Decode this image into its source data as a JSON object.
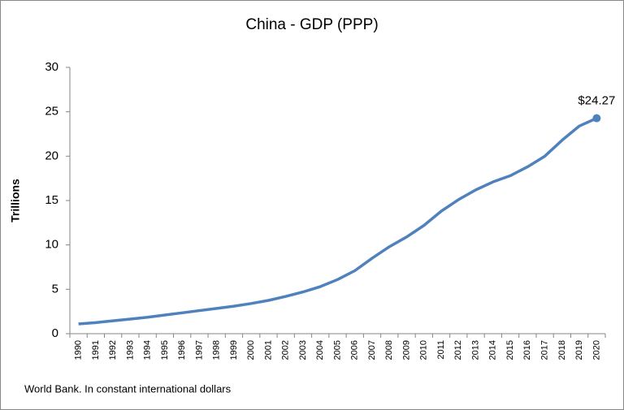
{
  "chart_data": {
    "type": "line",
    "title": "China - GDP (PPP)",
    "y_label": "Trillions",
    "source": "World Bank.  In constant international dollars",
    "categories": [
      "1990",
      "1991",
      "1992",
      "1993",
      "1994",
      "1995",
      "1996",
      "1997",
      "1998",
      "1999",
      "2000",
      "2001",
      "2002",
      "2003",
      "2004",
      "2005",
      "2006",
      "2007",
      "2008",
      "2009",
      "2010",
      "2011",
      "2012",
      "2013",
      "2014",
      "2015",
      "2016",
      "2017",
      "2018",
      "2019",
      "2020"
    ],
    "values": [
      1.1,
      1.25,
      1.45,
      1.65,
      1.85,
      2.1,
      2.35,
      2.6,
      2.85,
      3.1,
      3.4,
      3.75,
      4.2,
      4.7,
      5.3,
      6.1,
      7.1,
      8.5,
      9.8,
      10.9,
      12.2,
      13.8,
      15.1,
      16.2,
      17.1,
      17.8,
      18.8,
      20.0,
      21.8,
      23.4,
      24.27
    ],
    "value_labels": [
      null,
      null,
      null,
      null,
      null,
      null,
      null,
      null,
      null,
      null,
      null,
      null,
      null,
      null,
      null,
      null,
      null,
      null,
      null,
      null,
      null,
      null,
      null,
      null,
      null,
      null,
      null,
      null,
      null,
      null,
      "$24.27"
    ],
    "color": "#4f81bd",
    "ylim": [
      0,
      30
    ],
    "yticks": [
      0,
      5,
      10,
      15,
      20,
      25,
      30
    ],
    "grid": false
  }
}
